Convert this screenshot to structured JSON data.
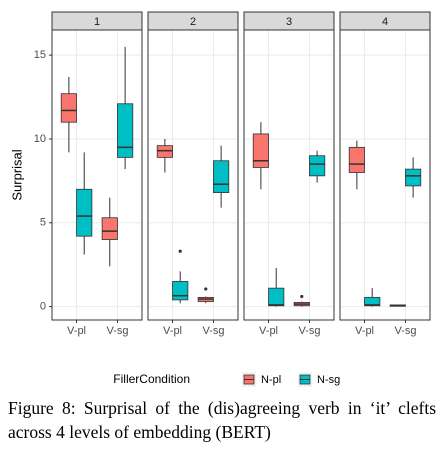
{
  "chart_data": {
    "type": "box",
    "ylabel": "Surprisal",
    "categories": [
      "V-pl",
      "V-sg"
    ],
    "ylim": [
      -0.8,
      16.5
    ],
    "yticks": [
      0,
      5,
      10,
      15
    ],
    "grid": true,
    "legend_title": "FillerCondition",
    "series": [
      {
        "name": "N-pl",
        "color": "#f8766d"
      },
      {
        "name": "N-sg",
        "color": "#00bfc4"
      }
    ],
    "facets": [
      {
        "title": "1",
        "series": [
          {
            "values": [
              {
                "low": 9.2,
                "q1": 11.0,
                "median": 11.7,
                "q3": 12.7,
                "high": 13.7
              },
              {
                "low": 2.4,
                "q1": 4.0,
                "median": 4.5,
                "q3": 5.3,
                "high": 6.5
              }
            ]
          },
          {
            "values": [
              {
                "low": 3.1,
                "q1": 4.2,
                "median": 5.4,
                "q3": 7.0,
                "high": 9.2
              },
              {
                "low": 8.2,
                "q1": 8.9,
                "median": 9.5,
                "q3": 12.1,
                "high": 15.5
              }
            ]
          }
        ]
      },
      {
        "title": "2",
        "series": [
          {
            "values": [
              {
                "low": 8.0,
                "q1": 8.9,
                "median": 9.3,
                "q3": 9.6,
                "high": 10.0
              },
              {
                "low": 0.2,
                "q1": 0.3,
                "median": 0.45,
                "q3": 0.55,
                "high": 0.6,
                "outliers": [
                  1.05
                ]
              }
            ]
          },
          {
            "values": [
              {
                "low": 0.2,
                "q1": 0.4,
                "median": 0.65,
                "q3": 1.5,
                "high": 2.1,
                "outliers": [
                  3.3
                ]
              },
              {
                "low": 5.9,
                "q1": 6.8,
                "median": 7.3,
                "q3": 8.7,
                "high": 9.6
              }
            ]
          }
        ]
      },
      {
        "title": "3",
        "series": [
          {
            "values": [
              {
                "low": 7.0,
                "q1": 8.3,
                "median": 8.7,
                "q3": 10.3,
                "high": 11.0
              },
              {
                "low": 0,
                "q1": 0.05,
                "median": 0.15,
                "q3": 0.25,
                "high": 0.3,
                "outliers": [
                  0.6
                ]
              }
            ]
          },
          {
            "values": [
              {
                "low": 0,
                "q1": 0.05,
                "median": 0.1,
                "q3": 1.1,
                "high": 2.3
              },
              {
                "low": 7.4,
                "q1": 7.8,
                "median": 8.5,
                "q3": 9.0,
                "high": 9.3
              }
            ]
          }
        ]
      },
      {
        "title": "4",
        "series": [
          {
            "values": [
              {
                "low": 7.0,
                "q1": 8.0,
                "median": 8.5,
                "q3": 9.5,
                "high": 9.9
              },
              {
                "low": 0,
                "q1": 0.02,
                "median": 0.05,
                "q3": 0.1,
                "high": 0.12
              }
            ]
          },
          {
            "values": [
              {
                "low": 0,
                "q1": 0.05,
                "median": 0.1,
                "q3": 0.55,
                "high": 1.1
              },
              {
                "low": 6.5,
                "q1": 7.2,
                "median": 7.8,
                "q3": 8.2,
                "high": 8.9
              }
            ]
          }
        ]
      }
    ]
  },
  "caption": "Figure 8: Surprisal of the (dis)agreeing verb in ‘it’ clefts across 4 levels of embedding (BERT)"
}
